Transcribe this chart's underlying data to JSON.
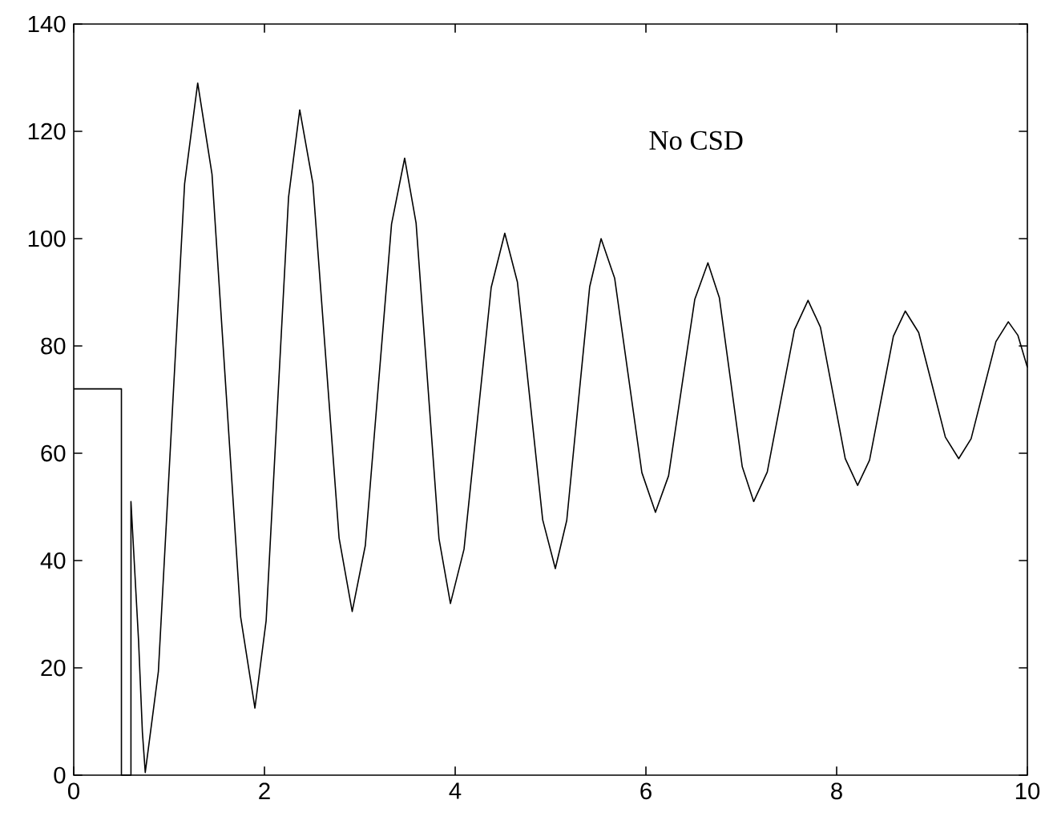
{
  "chart_data": {
    "type": "line",
    "xlim": [
      0,
      10
    ],
    "ylim": [
      0,
      140
    ],
    "xticks": [
      0,
      2,
      4,
      6,
      8,
      10
    ],
    "yticks": [
      0,
      20,
      40,
      60,
      80,
      100,
      120,
      140
    ],
    "marker": "none",
    "line_style": "solid",
    "annotations": [
      "No CSD"
    ],
    "series": [
      {
        "color": "#000000",
        "x": [
          0,
          0.5,
          0.5,
          0.6,
          0.6,
          0.68,
          0.72,
          0.75,
          0.8875,
          1.025,
          1.1625,
          1.3,
          1.45,
          1.6,
          1.75,
          1.9,
          2.0175,
          2.135,
          2.2525,
          2.37,
          2.5075,
          2.645,
          2.7825,
          2.92,
          3.0575,
          3.195,
          3.3325,
          3.47,
          3.59,
          3.71,
          3.83,
          3.95,
          4.0925,
          4.235,
          4.3775,
          4.52,
          4.6525,
          4.785,
          4.9175,
          5.05,
          5.17,
          5.29,
          5.41,
          5.53,
          5.6725,
          5.815,
          5.9575,
          6.1,
          6.2375,
          6.375,
          6.5125,
          6.65,
          6.77,
          6.89,
          7.01,
          7.13,
          7.2725,
          7.415,
          7.5575,
          7.7,
          7.83,
          7.96,
          8.09,
          8.22,
          8.345,
          8.47,
          8.595,
          8.72,
          8.86,
          9.0,
          9.14,
          9.28,
          9.41,
          9.54,
          9.67,
          9.8,
          9.9,
          10
        ],
        "values": [
          72,
          72,
          0,
          0,
          51,
          25,
          8,
          0.5,
          19.3,
          64.8,
          110.2,
          129,
          112.0,
          70.8,
          29.5,
          12.5,
          28.8,
          68.3,
          107.7,
          124,
          110.3,
          77.3,
          44.2,
          30.5,
          42.8,
          72.8,
          102.7,
          115,
          102.9,
          73.5,
          44.1,
          32,
          42.1,
          66.5,
          90.9,
          101,
          91.9,
          69.8,
          47.6,
          38.5,
          47.5,
          69.3,
          91.0,
          100,
          92.6,
          74.5,
          56.4,
          49,
          55.8,
          72.3,
          88.7,
          95.5,
          89.0,
          73.3,
          57.5,
          51,
          56.5,
          69.8,
          83.0,
          88.5,
          83.5,
          71.3,
          59.0,
          54,
          58.7,
          70.3,
          81.8,
          86.5,
          82.5,
          72.8,
          63.0,
          59,
          62.7,
          71.8,
          80.8,
          84.5,
          82,
          76
        ]
      }
    ]
  }
}
